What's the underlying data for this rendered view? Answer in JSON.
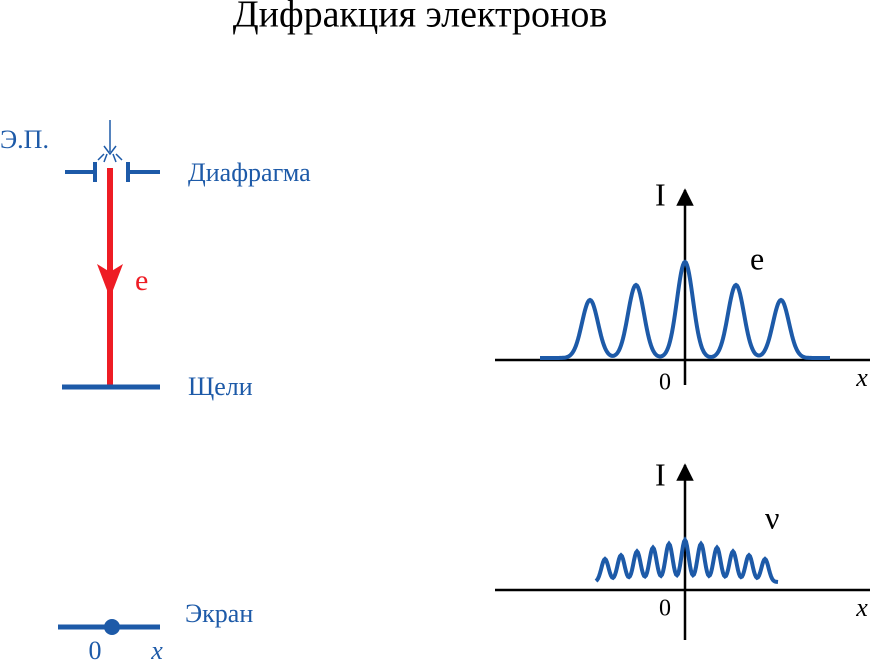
{
  "header": {
    "title": "Дифракция электронов"
  },
  "setup": {
    "source": "Э.П.",
    "diaphragm": "Диафрагма",
    "particle": "e",
    "slits": "Щели",
    "screen": "Экран",
    "origin": "0",
    "axis": "x"
  },
  "graphs": [
    {
      "y_label": "I",
      "curve_label": "e",
      "origin": "0",
      "x_label": "x"
    },
    {
      "y_label": "I",
      "curve_label": "ν",
      "origin": "0",
      "x_label": "x"
    }
  ]
}
